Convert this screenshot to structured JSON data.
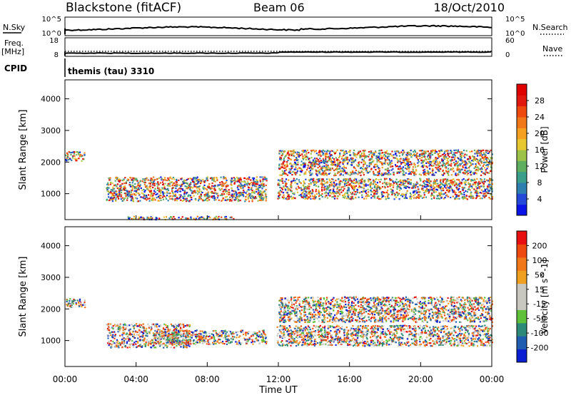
{
  "header": {
    "station": "Blackstone (fitACF)",
    "beam": "Beam 06",
    "date": "18/Oct/2010"
  },
  "strips": {
    "nsky_label": "N.Sky",
    "nsky_top": "10^5",
    "nsky_bottom": "10^0",
    "nsearch_label": "N.Search",
    "nsearch_top": "10^5",
    "nsearch_bottom": "10^0",
    "freq_label_1": "Freq.",
    "freq_label_2": "[MHz]",
    "freq_top": "18",
    "freq_bottom": "8",
    "nave_label": "Nave",
    "nave_top": "60",
    "nave_bottom": "0",
    "cpid_label": "CPID",
    "cpid_value": "themis (tau) 3310"
  },
  "chart_data": [
    {
      "type": "heatmap",
      "name": "power",
      "ylabel": "Slant Range [km]",
      "xlabel": "Time UT",
      "xlim_hours": [
        0,
        24
      ],
      "ylim_km": [
        180,
        4600
      ],
      "y_ticks": [
        1000,
        2000,
        3000,
        4000
      ],
      "x_ticks": [
        "00:00",
        "04:00",
        "08:00",
        "12:00",
        "16:00",
        "20:00",
        "00:00"
      ],
      "colorbar": {
        "label": "Power [dB]",
        "ticks": [
          4,
          8,
          12,
          16,
          20,
          24,
          28
        ],
        "colors": [
          "#0a14e6",
          "#2448d8",
          "#2e7fb0",
          "#3a9e8a",
          "#5fae5f",
          "#9cc24a",
          "#e8c830",
          "#f5a020",
          "#f07818",
          "#ee4a10",
          "#e01810",
          "#e00000"
        ]
      },
      "scatter_regions": [
        {
          "t0": 0.0,
          "t1": 1.1,
          "r0": 2050,
          "r1": 2350,
          "value_range": [
            2,
            10
          ]
        },
        {
          "t0": 2.3,
          "t1": 11.3,
          "r0": 780,
          "r1": 1550,
          "value_range": [
            6,
            30
          ]
        },
        {
          "t0": 3.5,
          "t1": 9.5,
          "r0": 200,
          "r1": 300,
          "value_range": [
            6,
            24
          ]
        },
        {
          "t0": 11.9,
          "t1": 24.0,
          "r0": 850,
          "r1": 1500,
          "value_range": [
            6,
            30
          ]
        },
        {
          "t0": 12.0,
          "t1": 24.0,
          "r0": 1600,
          "r1": 2400,
          "value_range": [
            2,
            10
          ]
        }
      ]
    },
    {
      "type": "heatmap",
      "name": "velocity",
      "ylabel": "Slant Range [km]",
      "xlabel": "Time UT",
      "xlim_hours": [
        0,
        24
      ],
      "ylim_km": [
        180,
        4600
      ],
      "y_ticks": [
        1000,
        2000,
        3000,
        4000
      ],
      "x_ticks": [
        "00:00",
        "04:00",
        "08:00",
        "12:00",
        "16:00",
        "20:00",
        "00:00"
      ],
      "colorbar": {
        "label": "Velocity [m s^-1]",
        "ticks": [
          "200",
          "100",
          "50",
          "15",
          "-15",
          "-50",
          "-100",
          "-200"
        ],
        "colors": [
          "#0a1ed2",
          "#1f5db0",
          "#2e8a78",
          "#5fc03a",
          "#c8c8c0",
          "#c8c8c0",
          "#f0a020",
          "#f07818",
          "#ee4a10",
          "#e81010"
        ]
      },
      "scatter_regions": [
        {
          "t0": 0.0,
          "t1": 1.1,
          "r0": 2050,
          "r1": 2350,
          "value_range": [
            -15,
            15
          ]
        },
        {
          "t0": 2.3,
          "t1": 7.0,
          "r0": 800,
          "r1": 1550,
          "value_range": [
            -60,
            -20
          ]
        },
        {
          "t0": 5.0,
          "t1": 11.3,
          "r0": 900,
          "r1": 1350,
          "value_range": [
            -15,
            15
          ]
        },
        {
          "t0": 11.9,
          "t1": 24.0,
          "r0": 850,
          "r1": 1500,
          "value_range": [
            -15,
            15
          ]
        },
        {
          "t0": 12.0,
          "t1": 24.0,
          "r0": 1600,
          "r1": 2400,
          "value_range": [
            -40,
            60
          ]
        }
      ]
    }
  ]
}
